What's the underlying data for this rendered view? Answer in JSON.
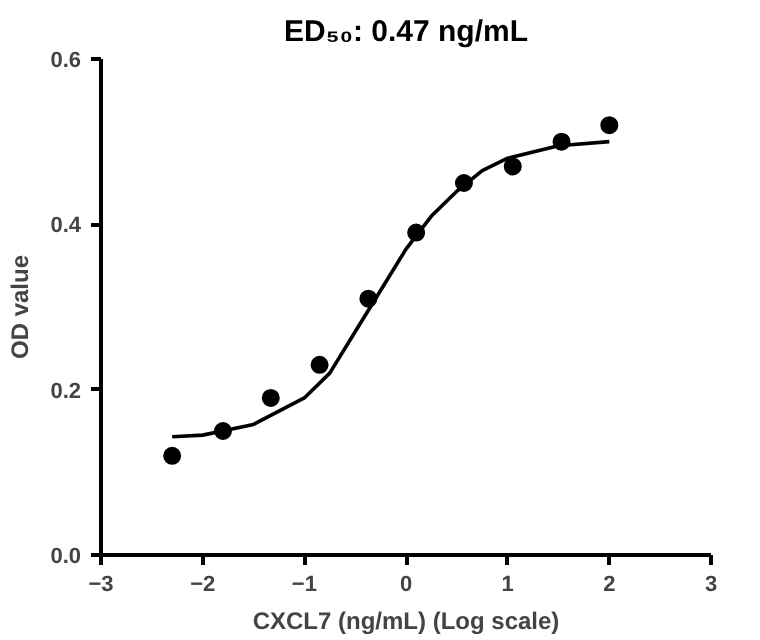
{
  "chart_data": {
    "type": "scatter",
    "title": "ED₅₀: 0.47 ng/mL",
    "xlabel": "CXCL7 (ng/mL) (Log scale)",
    "ylabel": "OD value",
    "xlim": [
      -3,
      3
    ],
    "ylim": [
      0,
      0.6
    ],
    "xticks": [
      -3,
      -2,
      -1,
      0,
      1,
      2,
      3
    ],
    "yticks": [
      {
        "value": 0,
        "label": "0.0"
      },
      0.2,
      0.4,
      0.6
    ],
    "grid": false,
    "series": [
      {
        "marker": "circle",
        "color": "#000000",
        "x": [
          -2.3,
          -1.8,
          -1.33,
          -0.85,
          -0.37,
          0.1,
          0.57,
          1.05,
          1.53,
          2.0
        ],
        "values": [
          0.12,
          0.15,
          0.19,
          0.23,
          0.31,
          0.39,
          0.45,
          0.47,
          0.5,
          0.52
        ]
      },
      {
        "type": "line",
        "marker": "none",
        "color": "#000000",
        "line_style": "solid",
        "x": [
          -2.3,
          -2.0,
          -1.5,
          -1.0,
          -0.75,
          -0.5,
          -0.25,
          0,
          0.25,
          0.5,
          0.75,
          1.0,
          1.5,
          2.0
        ],
        "values": [
          0.143,
          0.145,
          0.158,
          0.19,
          0.22,
          0.27,
          0.32,
          0.37,
          0.41,
          0.44,
          0.465,
          0.48,
          0.495,
          0.5
        ]
      }
    ]
  }
}
